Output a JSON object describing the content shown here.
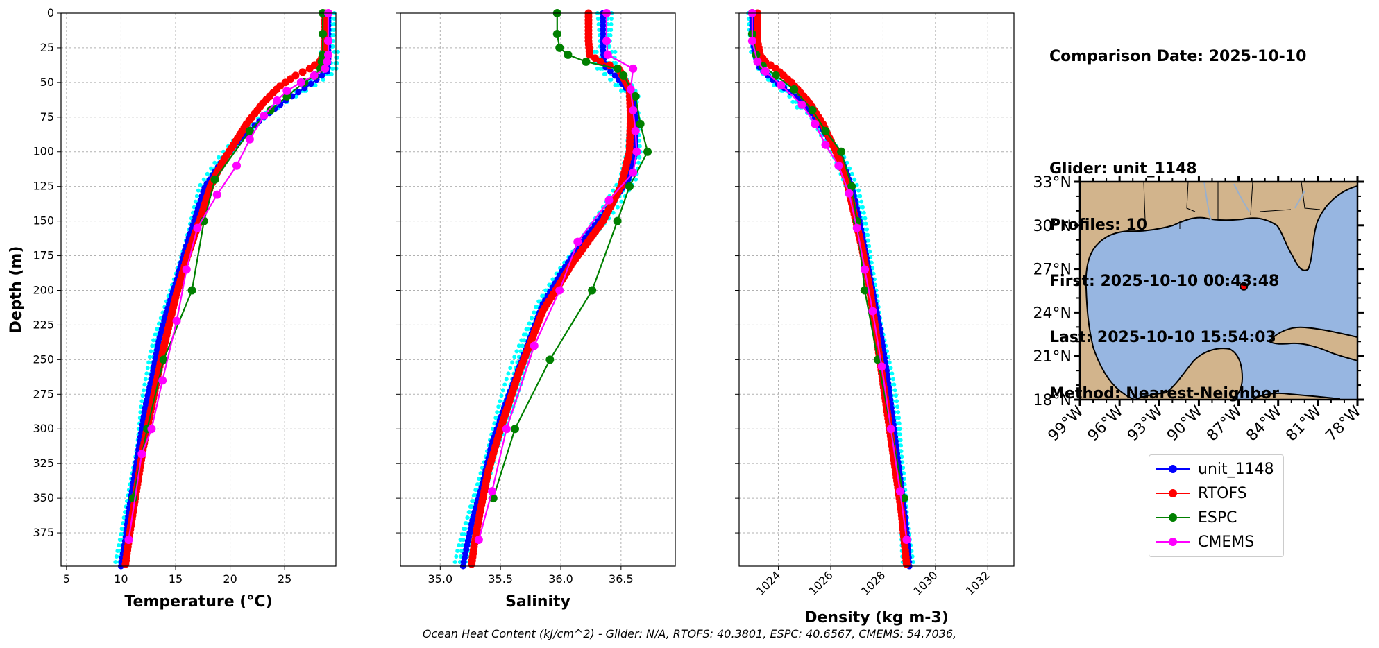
{
  "figure": {
    "info": {
      "comparison_date": "Comparison Date: 2025-10-10",
      "glider": "Glider: unit_1148",
      "profiles": "Profiles: 10",
      "first": "First: 2025-10-10 00:43:48",
      "last": "Last: 2025-10-10 15:54:03",
      "method": "Method: Nearest-Neighbor"
    },
    "ohc_text": "Ocean Heat Content (kJ/cm^2) - Glider: N/A,  RTOFS: 40.3801,  ESPC: 40.6567,  CMEMS: 54.7036,",
    "legend": [
      {
        "name": "unit_1148",
        "color": "#0000ff"
      },
      {
        "name": "RTOFS",
        "color": "#ff0000"
      },
      {
        "name": "ESPC",
        "color": "#008000"
      },
      {
        "name": "CMEMS",
        "color": "#ff00ff"
      }
    ],
    "colors": {
      "glider_profiles": "#00ffff",
      "land": "#d2b48c",
      "ocean": "#97b6e1"
    },
    "map": {
      "type": "map",
      "lat_ticks": [
        "33°N",
        "30°N",
        "27°N",
        "24°N",
        "21°N",
        "18°N"
      ],
      "lon_ticks": [
        "99°W",
        "96°W",
        "93°W",
        "90°W",
        "87°W",
        "84°W",
        "81°W",
        "78°W"
      ],
      "extent": {
        "lon": [
          -99,
          -78
        ],
        "lat": [
          18,
          33
        ]
      },
      "glider_location": {
        "lon": -86.6,
        "lat": 25.8
      }
    }
  },
  "chart_data": [
    {
      "type": "line",
      "xlabel": "Temperature (°C)",
      "ylabel": "Depth (m)",
      "xlim": [
        4.5,
        29.7
      ],
      "ylim": [
        399,
        0
      ],
      "xticks": [
        5,
        10,
        15,
        20,
        25
      ],
      "yticks": [
        0,
        25,
        50,
        75,
        100,
        125,
        150,
        175,
        200,
        225,
        250,
        275,
        300,
        325,
        350,
        375
      ],
      "grid": true,
      "series": [
        {
          "name": "unit_1148",
          "x": [
            29.0,
            29.0,
            29.0,
            28.9,
            27.6,
            25.1,
            23.1,
            21.0,
            19.4,
            17.7,
            16.9,
            15.9,
            15.2,
            14.2,
            13.5,
            12.9,
            12.2,
            11.7,
            11.2,
            10.7,
            10.4,
            10.0
          ],
          "y": [
            0,
            20,
            35,
            42,
            50,
            63,
            75,
            90,
            105,
            125,
            145,
            170,
            190,
            215,
            235,
            260,
            285,
            310,
            335,
            360,
            380,
            398
          ]
        },
        {
          "name": "RTOFS",
          "x": [
            28.7,
            28.7,
            28.6,
            28.2,
            27.3,
            26.0,
            24.5,
            23.0,
            21.5,
            20.3,
            19.5,
            18.8,
            18.2,
            17.4,
            16.1,
            15.0,
            13.8,
            12.9,
            12.0,
            11.3,
            10.8,
            10.4
          ],
          "y": [
            0,
            20,
            30,
            35,
            40,
            45,
            53,
            65,
            80,
            95,
            105,
            115,
            125,
            145,
            175,
            205,
            245,
            280,
            315,
            350,
            375,
            398
          ]
        },
        {
          "name": "ESPC",
          "x": [
            28.5,
            28.5,
            28.5,
            28.4,
            28.3,
            27.8,
            26.8,
            25.2,
            23.7,
            21.8,
            18.6,
            17.6,
            16.5,
            13.9,
            12.4,
            11.1
          ],
          "y": [
            0,
            15,
            30,
            35,
            40,
            45,
            50,
            60,
            70,
            85,
            120,
            150,
            200,
            250,
            300,
            350
          ]
        },
        {
          "name": "CMEMS",
          "x": [
            29.0,
            29.0,
            29.0,
            28.9,
            28.7,
            27.7,
            26.5,
            25.2,
            24.3,
            23.1,
            21.8,
            20.6,
            18.8,
            17.0,
            16.0,
            15.1,
            13.8,
            12.8,
            11.9,
            10.7
          ],
          "y": [
            0,
            20,
            30,
            35,
            40,
            45,
            50,
            56,
            63,
            74,
            91,
            110,
            131,
            155,
            185,
            222,
            265,
            300,
            318,
            380
          ]
        }
      ]
    },
    {
      "type": "line",
      "xlabel": "Salinity",
      "ylabel": "",
      "xlim": [
        34.67,
        36.95
      ],
      "ylim": [
        399,
        0
      ],
      "xticks": [
        35.0,
        35.5,
        36.0,
        36.5
      ],
      "yticks": [
        0,
        25,
        50,
        75,
        100,
        125,
        150,
        175,
        200,
        225,
        250,
        275,
        300,
        325,
        350,
        375
      ],
      "grid": true,
      "series": [
        {
          "name": "unit_1148",
          "x": [
            36.35,
            36.35,
            36.36,
            36.45,
            36.6,
            36.62,
            36.62,
            36.56,
            36.4,
            36.22,
            36.02,
            35.85,
            35.7,
            35.55,
            35.43,
            35.35,
            35.27,
            35.22,
            35.19
          ],
          "y": [
            0,
            25,
            38,
            45,
            60,
            75,
            100,
            120,
            140,
            160,
            185,
            210,
            245,
            280,
            310,
            340,
            365,
            385,
            398
          ]
        },
        {
          "name": "RTOFS",
          "x": [
            36.23,
            36.23,
            36.24,
            36.33,
            36.48,
            36.57,
            36.58,
            36.57,
            36.5,
            36.35,
            36.1,
            35.85,
            35.65,
            35.5,
            35.4,
            35.33,
            35.28,
            35.26
          ],
          "y": [
            0,
            20,
            30,
            35,
            40,
            55,
            75,
            100,
            125,
            150,
            180,
            215,
            260,
            300,
            330,
            360,
            385,
            398
          ]
        },
        {
          "name": "ESPC",
          "x": [
            35.97,
            35.97,
            35.99,
            36.06,
            36.21,
            36.47,
            36.52,
            36.62,
            36.66,
            36.72,
            36.57,
            36.47,
            36.26,
            35.91,
            35.62,
            35.44
          ],
          "y": [
            0,
            15,
            25,
            30,
            35,
            40,
            45,
            60,
            80,
            100,
            125,
            150,
            200,
            250,
            300,
            350
          ]
        },
        {
          "name": "CMEMS",
          "x": [
            36.38,
            36.38,
            36.39,
            36.6,
            36.58,
            36.6,
            36.62,
            36.63,
            36.6,
            36.4,
            36.14,
            35.99,
            35.78,
            35.55,
            35.43,
            35.32
          ],
          "y": [
            0,
            20,
            30,
            40,
            55,
            70,
            85,
            100,
            115,
            135,
            165,
            200,
            240,
            300,
            345,
            380
          ]
        }
      ]
    },
    {
      "type": "line",
      "xlabel": "Density (kg m-3)",
      "ylabel": "",
      "xlim": [
        1022.5,
        1033.0
      ],
      "ylim": [
        399,
        0
      ],
      "xticks": [
        1024,
        1026,
        1028,
        1030,
        1032
      ],
      "yticks": [
        0,
        25,
        50,
        75,
        100,
        125,
        150,
        175,
        200,
        225,
        250,
        275,
        300,
        325,
        350,
        375
      ],
      "grid": true,
      "series": [
        {
          "name": "unit_1148",
          "x": [
            1023.0,
            1023.0,
            1023.1,
            1023.3,
            1023.9,
            1024.7,
            1025.4,
            1025.9,
            1026.4,
            1026.8,
            1027.1,
            1027.35,
            1027.6,
            1027.9,
            1028.15,
            1028.35,
            1028.55,
            1028.75,
            1028.9,
            1029.0
          ],
          "y": [
            0,
            15,
            30,
            40,
            50,
            60,
            75,
            90,
            105,
            125,
            150,
            175,
            200,
            230,
            260,
            290,
            320,
            350,
            375,
            398
          ]
        },
        {
          "name": "RTOFS",
          "x": [
            1023.2,
            1023.2,
            1023.3,
            1023.5,
            1023.9,
            1024.5,
            1025.2,
            1025.7,
            1026.2,
            1026.6,
            1026.9,
            1027.2,
            1027.5,
            1027.8,
            1028.1,
            1028.4,
            1028.7,
            1028.9
          ],
          "y": [
            0,
            20,
            30,
            35,
            40,
            50,
            65,
            80,
            100,
            120,
            145,
            170,
            200,
            240,
            280,
            320,
            360,
            398
          ]
        },
        {
          "name": "ESPC",
          "x": [
            1023.0,
            1023.0,
            1023.15,
            1023.4,
            1023.9,
            1024.6,
            1025.3,
            1025.8,
            1026.4,
            1026.8,
            1027.0,
            1027.3,
            1027.8,
            1028.3,
            1028.8
          ],
          "y": [
            0,
            15,
            30,
            38,
            45,
            55,
            70,
            85,
            100,
            125,
            150,
            200,
            250,
            300,
            350
          ]
        },
        {
          "name": "CMEMS",
          "x": [
            1023.0,
            1023.0,
            1023.2,
            1023.5,
            1024.1,
            1024.9,
            1025.4,
            1025.8,
            1026.3,
            1026.7,
            1027.0,
            1027.3,
            1027.6,
            1027.95,
            1028.3,
            1028.65,
            1028.9
          ],
          "y": [
            0,
            20,
            35,
            42,
            52,
            66,
            80,
            95,
            110,
            130,
            155,
            185,
            215,
            255,
            300,
            345,
            380
          ]
        }
      ]
    }
  ]
}
